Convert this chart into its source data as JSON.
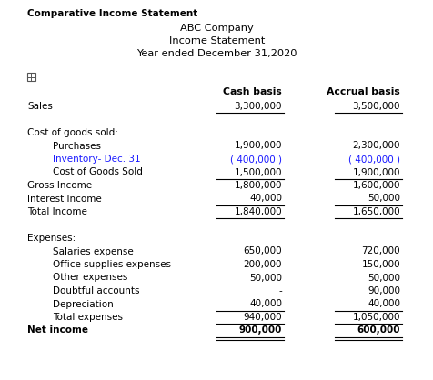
{
  "title_top": "Comparative Income Statement",
  "company": "ABC Company",
  "statement": "Income Statement",
  "period": "Year ended December 31,2020",
  "col1_header": "Cash basis",
  "col2_header": "Accrual basis",
  "rows": [
    {
      "label": "Sales",
      "indent": 0,
      "cash": "3,300,000",
      "accrual": "3,500,000",
      "bold": false,
      "underline": true,
      "double_underline": false
    },
    {
      "label": "",
      "indent": 0,
      "cash": "",
      "accrual": "",
      "bold": false,
      "underline": false,
      "double_underline": false
    },
    {
      "label": "Cost of goods sold:",
      "indent": 0,
      "cash": "",
      "accrual": "",
      "bold": false,
      "underline": false,
      "double_underline": false
    },
    {
      "label": "Purchases",
      "indent": 1,
      "cash": "1,900,000",
      "accrual": "2,300,000",
      "bold": false,
      "underline": false,
      "double_underline": false
    },
    {
      "label": "Inventory- Dec. 31",
      "indent": 1,
      "cash": "( 400,000 )",
      "accrual": "( 400,000 )",
      "bold": false,
      "underline": false,
      "double_underline": false,
      "blue": true
    },
    {
      "label": "Cost of Goods Sold",
      "indent": 1,
      "cash": "1,500,000",
      "accrual": "1,900,000",
      "bold": false,
      "underline": true,
      "double_underline": false
    },
    {
      "label": "Gross Income",
      "indent": 0,
      "cash": "1,800,000",
      "accrual": "1,600,000",
      "bold": false,
      "underline": false,
      "double_underline": false
    },
    {
      "label": "Interest Income",
      "indent": 0,
      "cash": "40,000",
      "accrual": "50,000",
      "bold": false,
      "underline": true,
      "double_underline": false
    },
    {
      "label": "Total Income",
      "indent": 0,
      "cash": "1,840,000",
      "accrual": "1,650,000",
      "bold": false,
      "underline": true,
      "double_underline": false
    },
    {
      "label": "",
      "indent": 0,
      "cash": "",
      "accrual": "",
      "bold": false,
      "underline": false,
      "double_underline": false
    },
    {
      "label": "Expenses:",
      "indent": 0,
      "cash": "",
      "accrual": "",
      "bold": false,
      "underline": false,
      "double_underline": false
    },
    {
      "label": "Salaries expense",
      "indent": 1,
      "cash": "650,000",
      "accrual": "720,000",
      "bold": false,
      "underline": false,
      "double_underline": false
    },
    {
      "label": "Office supplies expenses",
      "indent": 1,
      "cash": "200,000",
      "accrual": "150,000",
      "bold": false,
      "underline": false,
      "double_underline": false
    },
    {
      "label": "Other expenses",
      "indent": 1,
      "cash": "50,000",
      "accrual": "50,000",
      "bold": false,
      "underline": false,
      "double_underline": false
    },
    {
      "label": "Doubtful accounts",
      "indent": 1,
      "cash": "-",
      "accrual": "90,000",
      "bold": false,
      "underline": false,
      "double_underline": false
    },
    {
      "label": "Depreciation",
      "indent": 1,
      "cash": "40,000",
      "accrual": "40,000",
      "bold": false,
      "underline": true,
      "double_underline": false
    },
    {
      "label": "Total expenses",
      "indent": 1,
      "cash": "940,000",
      "accrual": "1,050,000",
      "bold": false,
      "underline": true,
      "double_underline": false
    },
    {
      "label": "Net income",
      "indent": 0,
      "cash": "900,000",
      "accrual": "600,000",
      "bold": true,
      "underline": false,
      "double_underline": true
    }
  ],
  "bg_color": "#ffffff",
  "text_color": "#000000",
  "blue_color": "#1a1aff",
  "fig_w": 4.77,
  "fig_h": 4.18,
  "dpi": 100
}
